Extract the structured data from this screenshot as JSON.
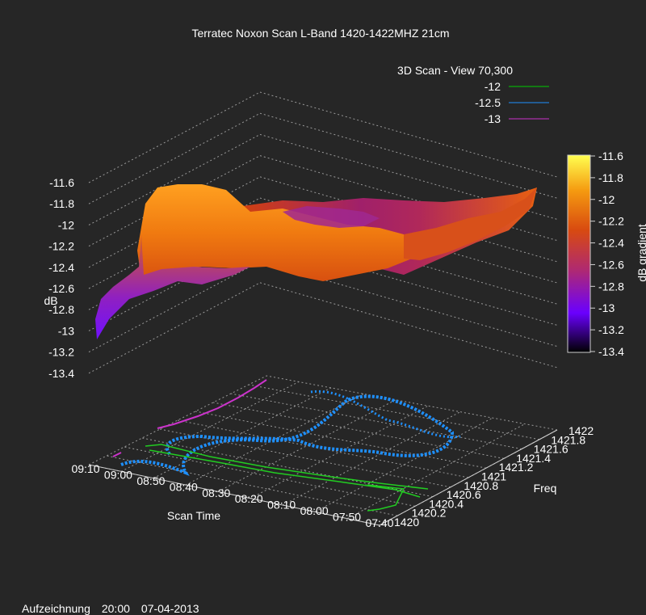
{
  "chart_data": {
    "type": "surface3d",
    "title": "Terratec Noxon Scan L-Band 1420-1422MHZ 21cm",
    "subtitle": "3D Scan - View 70,300",
    "zlabel": "dB",
    "xlabel": "Scan Time",
    "ylabel": "Freq",
    "colorbar_label": "dB gradient",
    "zlim": [
      -13.4,
      -11.6
    ],
    "z_ticks": [
      "-11.6",
      "-11.8",
      "-12",
      "-12.2",
      "-12.4",
      "-12.6",
      "-12.8",
      "-13",
      "-13.2",
      "-13.4"
    ],
    "time_ticks": [
      "09:10",
      "09:00",
      "08:50",
      "08:40",
      "08:30",
      "08:20",
      "08:10",
      "08:00",
      "07:50",
      "07:40"
    ],
    "freq_ticks": [
      "1420",
      "1420.2",
      "1420.4",
      "1420.6",
      "1420.8",
      "1421",
      "1421.2",
      "1421.4",
      "1421.6",
      "1421.8",
      "1422"
    ],
    "colorbar_ticks": [
      "-11.6",
      "-11.8",
      "-12",
      "-12.2",
      "-12.4",
      "-12.6",
      "-12.8",
      "-13",
      "-13.2",
      "-13.4"
    ],
    "contour_levels": [
      {
        "label": "-12",
        "color": "#00cc00"
      },
      {
        "label": "-12.5",
        "color": "#1e90ff"
      },
      {
        "label": "-13",
        "color": "#cc33cc"
      }
    ],
    "surface_color_scale": [
      "#000000",
      "#7000ff",
      "#c03060",
      "#e06000",
      "#ffa000",
      "#ffff40"
    ]
  },
  "footer": {
    "label": "Aufzeichnung",
    "time": "20:00",
    "date": "07-04-2013"
  }
}
